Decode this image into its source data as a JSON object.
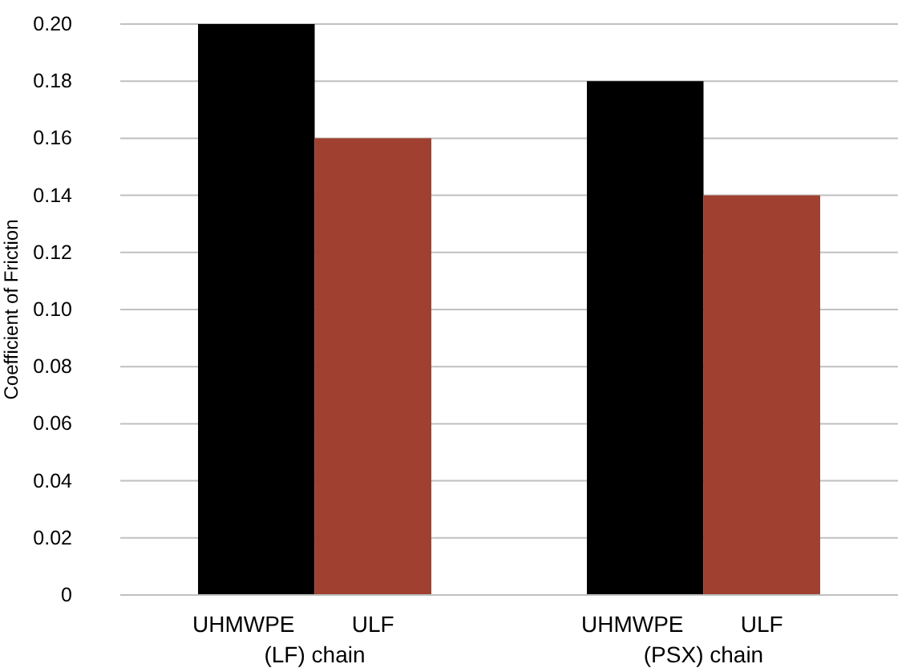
{
  "chart_data": {
    "type": "bar",
    "ylabel": "Coefficient of Friction",
    "categories": [
      "(LF) chain",
      "(PSX) chain"
    ],
    "series": [
      {
        "name": "UHMWPE",
        "color": "#000000",
        "values": [
          0.2,
          0.18
        ]
      },
      {
        "name": "ULF",
        "color": "#a04030",
        "values": [
          0.16,
          0.14
        ]
      }
    ],
    "ylim": [
      0,
      0.2
    ],
    "yticks": [
      {
        "value": 0,
        "label": "0"
      },
      {
        "value": 0.02,
        "label": "0.02"
      },
      {
        "value": 0.04,
        "label": "0.04"
      },
      {
        "value": 0.06,
        "label": "0.06"
      },
      {
        "value": 0.08,
        "label": "0.08"
      },
      {
        "value": 0.1,
        "label": "0.10"
      },
      {
        "value": 0.12,
        "label": "0.12"
      },
      {
        "value": 0.14,
        "label": "0.14"
      },
      {
        "value": 0.16,
        "label": "0.16"
      },
      {
        "value": 0.18,
        "label": "0.18"
      },
      {
        "value": 0.2,
        "label": "0.20"
      }
    ],
    "grid": "y"
  }
}
